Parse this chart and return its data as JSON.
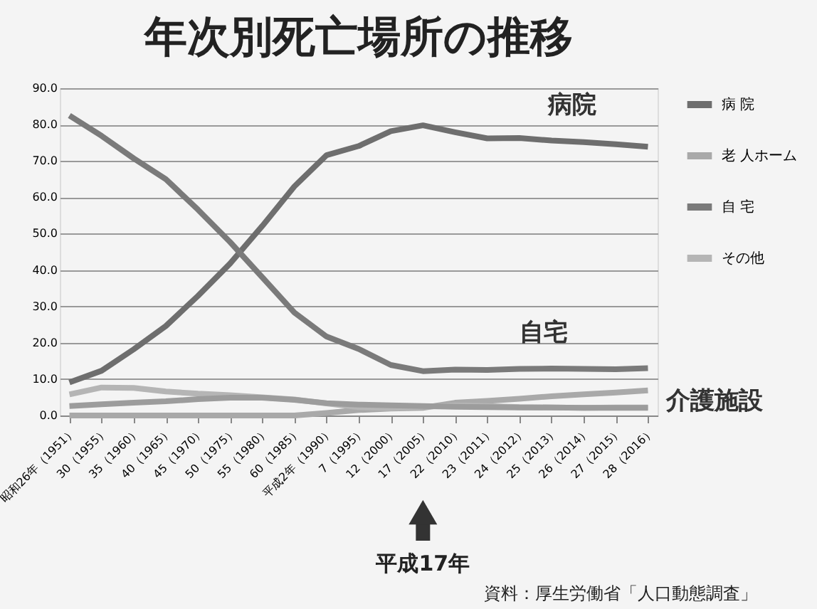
{
  "chart_data": {
    "type": "line",
    "title": "年次別死亡場所の推移",
    "categories": [
      "昭和26年（1951）",
      "30（1955）",
      "35（1960）",
      "40（1965）",
      "45（1970）",
      "50（1975）",
      "55（1980）",
      "60（1985）",
      "平成2年（1990）",
      "7（1995）",
      "12（2000）",
      "17（2005）",
      "22（2010）",
      "23（2011）",
      "24（2012）",
      "25（2013）",
      "26（2014）",
      "27（2015）",
      "28（2016）"
    ],
    "series": [
      {
        "name": "病 院",
        "color": "#6e6e6e",
        "values": [
          9.1,
          12.3,
          18.2,
          24.6,
          32.9,
          41.8,
          52.1,
          63.0,
          71.6,
          74.1,
          78.2,
          79.8,
          77.9,
          76.2,
          76.3,
          75.6,
          75.2,
          74.6,
          73.9
        ]
      },
      {
        "name": "老 人ホーム",
        "color": "#a9a9a9",
        "values": [
          0.0,
          0.0,
          0.0,
          0.0,
          0.0,
          0.0,
          0.0,
          0.0,
          0.7,
          1.5,
          1.9,
          2.1,
          3.5,
          4.0,
          4.6,
          5.3,
          5.8,
          6.3,
          6.9
        ]
      },
      {
        "name": "自 宅",
        "color": "#7a7a7a",
        "values": [
          82.5,
          76.9,
          70.7,
          65.0,
          56.6,
          47.7,
          38.0,
          28.3,
          21.7,
          18.3,
          13.9,
          12.2,
          12.6,
          12.5,
          12.8,
          12.9,
          12.8,
          12.7,
          13.0
        ]
      },
      {
        "name": "その他",
        "color": "#b5b5b5",
        "values": [
          5.8,
          7.7,
          7.6,
          6.6,
          6.0,
          5.6,
          5.0,
          4.4,
          3.3,
          2.3,
          2.0,
          2.4,
          2.8,
          2.6,
          2.3,
          2.2,
          2.1,
          2.2,
          2.2
        ]
      },
      {
        "color": "#9c9c9c",
        "values": [
          2.6,
          3.1,
          3.5,
          3.9,
          4.5,
          4.9,
          4.9,
          4.3,
          3.4,
          3.0,
          2.8,
          2.6,
          2.4,
          2.3,
          2.2,
          2.2,
          2.1,
          2.1,
          2.1
        ]
      }
    ],
    "ylim": [
      0,
      90
    ],
    "yticks": [
      {
        "value": 0,
        "label": "0.0"
      },
      {
        "value": 10,
        "label": "10.0"
      },
      {
        "value": 20,
        "label": "20.0"
      },
      {
        "value": 30,
        "label": "30.0"
      },
      {
        "value": 40,
        "label": "40.0"
      },
      {
        "value": 50,
        "label": "50.0"
      },
      {
        "value": 60,
        "label": "60.0"
      },
      {
        "value": 70,
        "label": "70.0"
      },
      {
        "value": 80,
        "label": "80.0"
      },
      {
        "value": 90,
        "label": "90.0"
      }
    ],
    "grid": "y",
    "legend": "right",
    "marker": "none",
    "line_style": "solid",
    "annotations": [
      "病院",
      "自宅",
      "介護施設",
      {
        "text": "平成17年",
        "x": "17（2005）"
      },
      "資料：厚生労働省「人口動態調査」"
    ]
  }
}
